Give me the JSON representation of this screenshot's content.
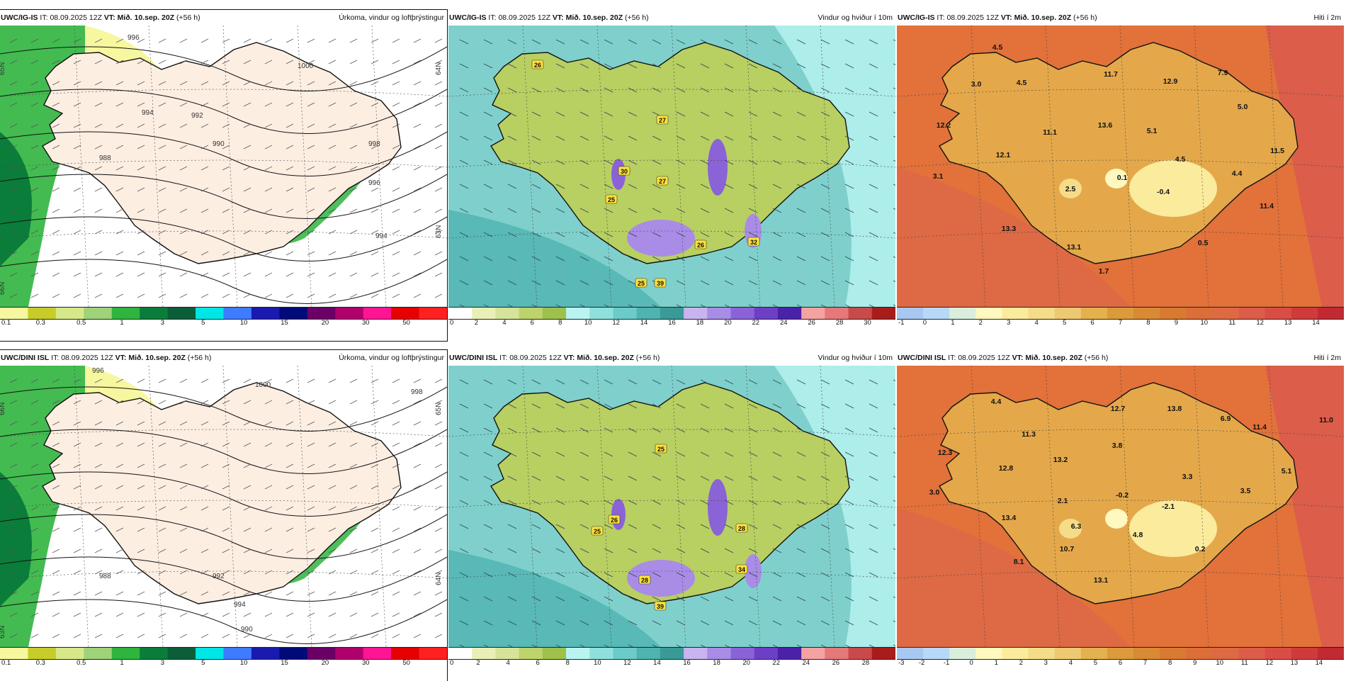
{
  "colors": {
    "precip": [
      "#f7f7a0",
      "#c8cc2a",
      "#d7e88a",
      "#9ed37a",
      "#2fb43e",
      "#0b7d3a",
      "#0c5e38",
      "#00e6e6",
      "#3e7bff",
      "#1a1ab0",
      "#000a78",
      "#6a0066",
      "#b0006e",
      "#ff1493",
      "#e60000",
      "#ff2020"
    ],
    "wind": [
      "#ffffff",
      "#e9efb6",
      "#d7e39a",
      "#bdd36c",
      "#9ec14c",
      "#b9f4f1",
      "#8fe0dc",
      "#6ccbc8",
      "#4fb3b0",
      "#3a9a98",
      "#c8b4ee",
      "#a98ce6",
      "#8a63d6",
      "#6c3fc4",
      "#4a22a8",
      "#f4a2a2",
      "#e57878",
      "#c84a4a",
      "#a81c1c"
    ],
    "temp": [
      "#a8c8f2",
      "#b8d8f8",
      "#d9eedc",
      "#fff8bf",
      "#fbeb9c",
      "#f5dc88",
      "#eec973",
      "#e4b14f",
      "#db9b3c",
      "#d88a34",
      "#d97a32",
      "#dc6e3a",
      "#dd6a44",
      "#db5d4a",
      "#d84e46",
      "#cf3b3b",
      "#c22a33"
    ]
  },
  "panels": [
    {
      "id": "igis-precip",
      "model": "UWC/IG-IS",
      "it_label": "IT:",
      "it": "08.09.2025 12Z",
      "vt_label": "VT:",
      "vt": "Mið. 10.sep. 20Z",
      "lead": "(+56 h)",
      "title": "Úrkoma, vindur og loftþrýstingur",
      "kind": "precip",
      "ticks": [
        "0.1",
        "0.3",
        "0.5",
        "1",
        "3",
        "5",
        "10",
        "15",
        "20",
        "30",
        "50"
      ],
      "iso_labels": [
        "996",
        "994",
        "992",
        "990",
        "988",
        "998",
        "996",
        "994",
        "1000"
      ],
      "lat_labels": [
        "65N",
        "64N",
        "63N",
        "66N"
      ]
    },
    {
      "id": "igis-wind",
      "model": "UWC/IG-IS",
      "it_label": "IT:",
      "it": "08.09.2025 12Z",
      "vt_label": "VT:",
      "vt": "Mið. 10.sep. 20Z",
      "lead": "(+56 h)",
      "title": "Vindur og hviður í 10m",
      "kind": "wind",
      "ticks": [
        "0",
        "2",
        "4",
        "6",
        "8",
        "10",
        "12",
        "14",
        "16",
        "18",
        "20",
        "22",
        "24",
        "26",
        "28",
        "30"
      ],
      "values": [
        "26",
        "27",
        "30",
        "27",
        "25",
        "26",
        "32",
        "25",
        "39"
      ]
    },
    {
      "id": "igis-temp",
      "model": "UWC/IG-IS",
      "it_label": "IT:",
      "it": "08.09.2025 12Z",
      "vt_label": "VT:",
      "vt": "Mið. 10.sep. 20Z",
      "lead": "(+56 h)",
      "title": "Hiti í 2m",
      "kind": "temp",
      "ticks": [
        "-1",
        "0",
        "1",
        "2",
        "3",
        "4",
        "5",
        "6",
        "7",
        "8",
        "9",
        "10",
        "11",
        "12",
        "13",
        "14"
      ],
      "values": [
        "4.5",
        "3.0",
        "4.5",
        "11.7",
        "12.9",
        "7.9",
        "12.2",
        "11.1",
        "13.6",
        "5.1",
        "5.0",
        "12.1",
        "4.5",
        "11.5",
        "3.1",
        "2.5",
        "0.1",
        "-0.4",
        "4.4",
        "11.4",
        "13.3",
        "13.1",
        "0.5",
        "1.7"
      ]
    },
    {
      "id": "dini-precip",
      "model": "UWC/DINI ISL",
      "it_label": "IT:",
      "it": "08.09.2025 12Z",
      "vt_label": "VT:",
      "vt": "Mið. 10.sep. 20Z",
      "lead": "(+56 h)",
      "title": "Úrkoma, vindur og loftþrýstingur",
      "kind": "precip",
      "ticks": [
        "0.1",
        "0.3",
        "0.5",
        "1",
        "3",
        "5",
        "10",
        "15",
        "20",
        "30",
        "50"
      ],
      "iso_labels": [
        "996",
        "1000",
        "998",
        "994",
        "992",
        "990",
        "988"
      ],
      "lat_labels": [
        "66N",
        "65N",
        "64N",
        "63N"
      ]
    },
    {
      "id": "dini-wind",
      "model": "UWC/DINI ISL",
      "it_label": "IT:",
      "it": "08.09.2025 12Z",
      "vt_label": "VT:",
      "vt": "Mið. 10.sep. 20Z",
      "lead": "(+56 h)",
      "title": "Vindur og hviður í 10m",
      "kind": "wind",
      "ticks": [
        "0",
        "2",
        "4",
        "6",
        "8",
        "10",
        "12",
        "14",
        "16",
        "18",
        "20",
        "22",
        "24",
        "26",
        "28"
      ],
      "values": [
        "25",
        "26",
        "25",
        "28",
        "34",
        "28",
        "39"
      ]
    },
    {
      "id": "dini-temp",
      "model": "UWC/DINI ISL",
      "it_label": "IT:",
      "it": "08.09.2025 12Z",
      "vt_label": "VT:",
      "vt": "Mið. 10.sep. 20Z",
      "lead": "(+56 h)",
      "title": "Hiti í 2m",
      "kind": "temp",
      "ticks": [
        "-3",
        "-2",
        "-1",
        "0",
        "1",
        "2",
        "3",
        "4",
        "5",
        "6",
        "7",
        "8",
        "9",
        "10",
        "11",
        "12",
        "13",
        "14"
      ],
      "values": [
        "4.4",
        "12.7",
        "13.8",
        "6.9",
        "11.4",
        "11.0",
        "12.3",
        "11.3",
        "3.8",
        "13.2",
        "12.8",
        "3.3",
        "5.1",
        "3.0",
        "2.1",
        "-0.2",
        "3.5",
        "-2.1",
        "13.4",
        "6.3",
        "4.8",
        "10.7",
        "0.2",
        "8.1",
        "13.1"
      ]
    }
  ]
}
